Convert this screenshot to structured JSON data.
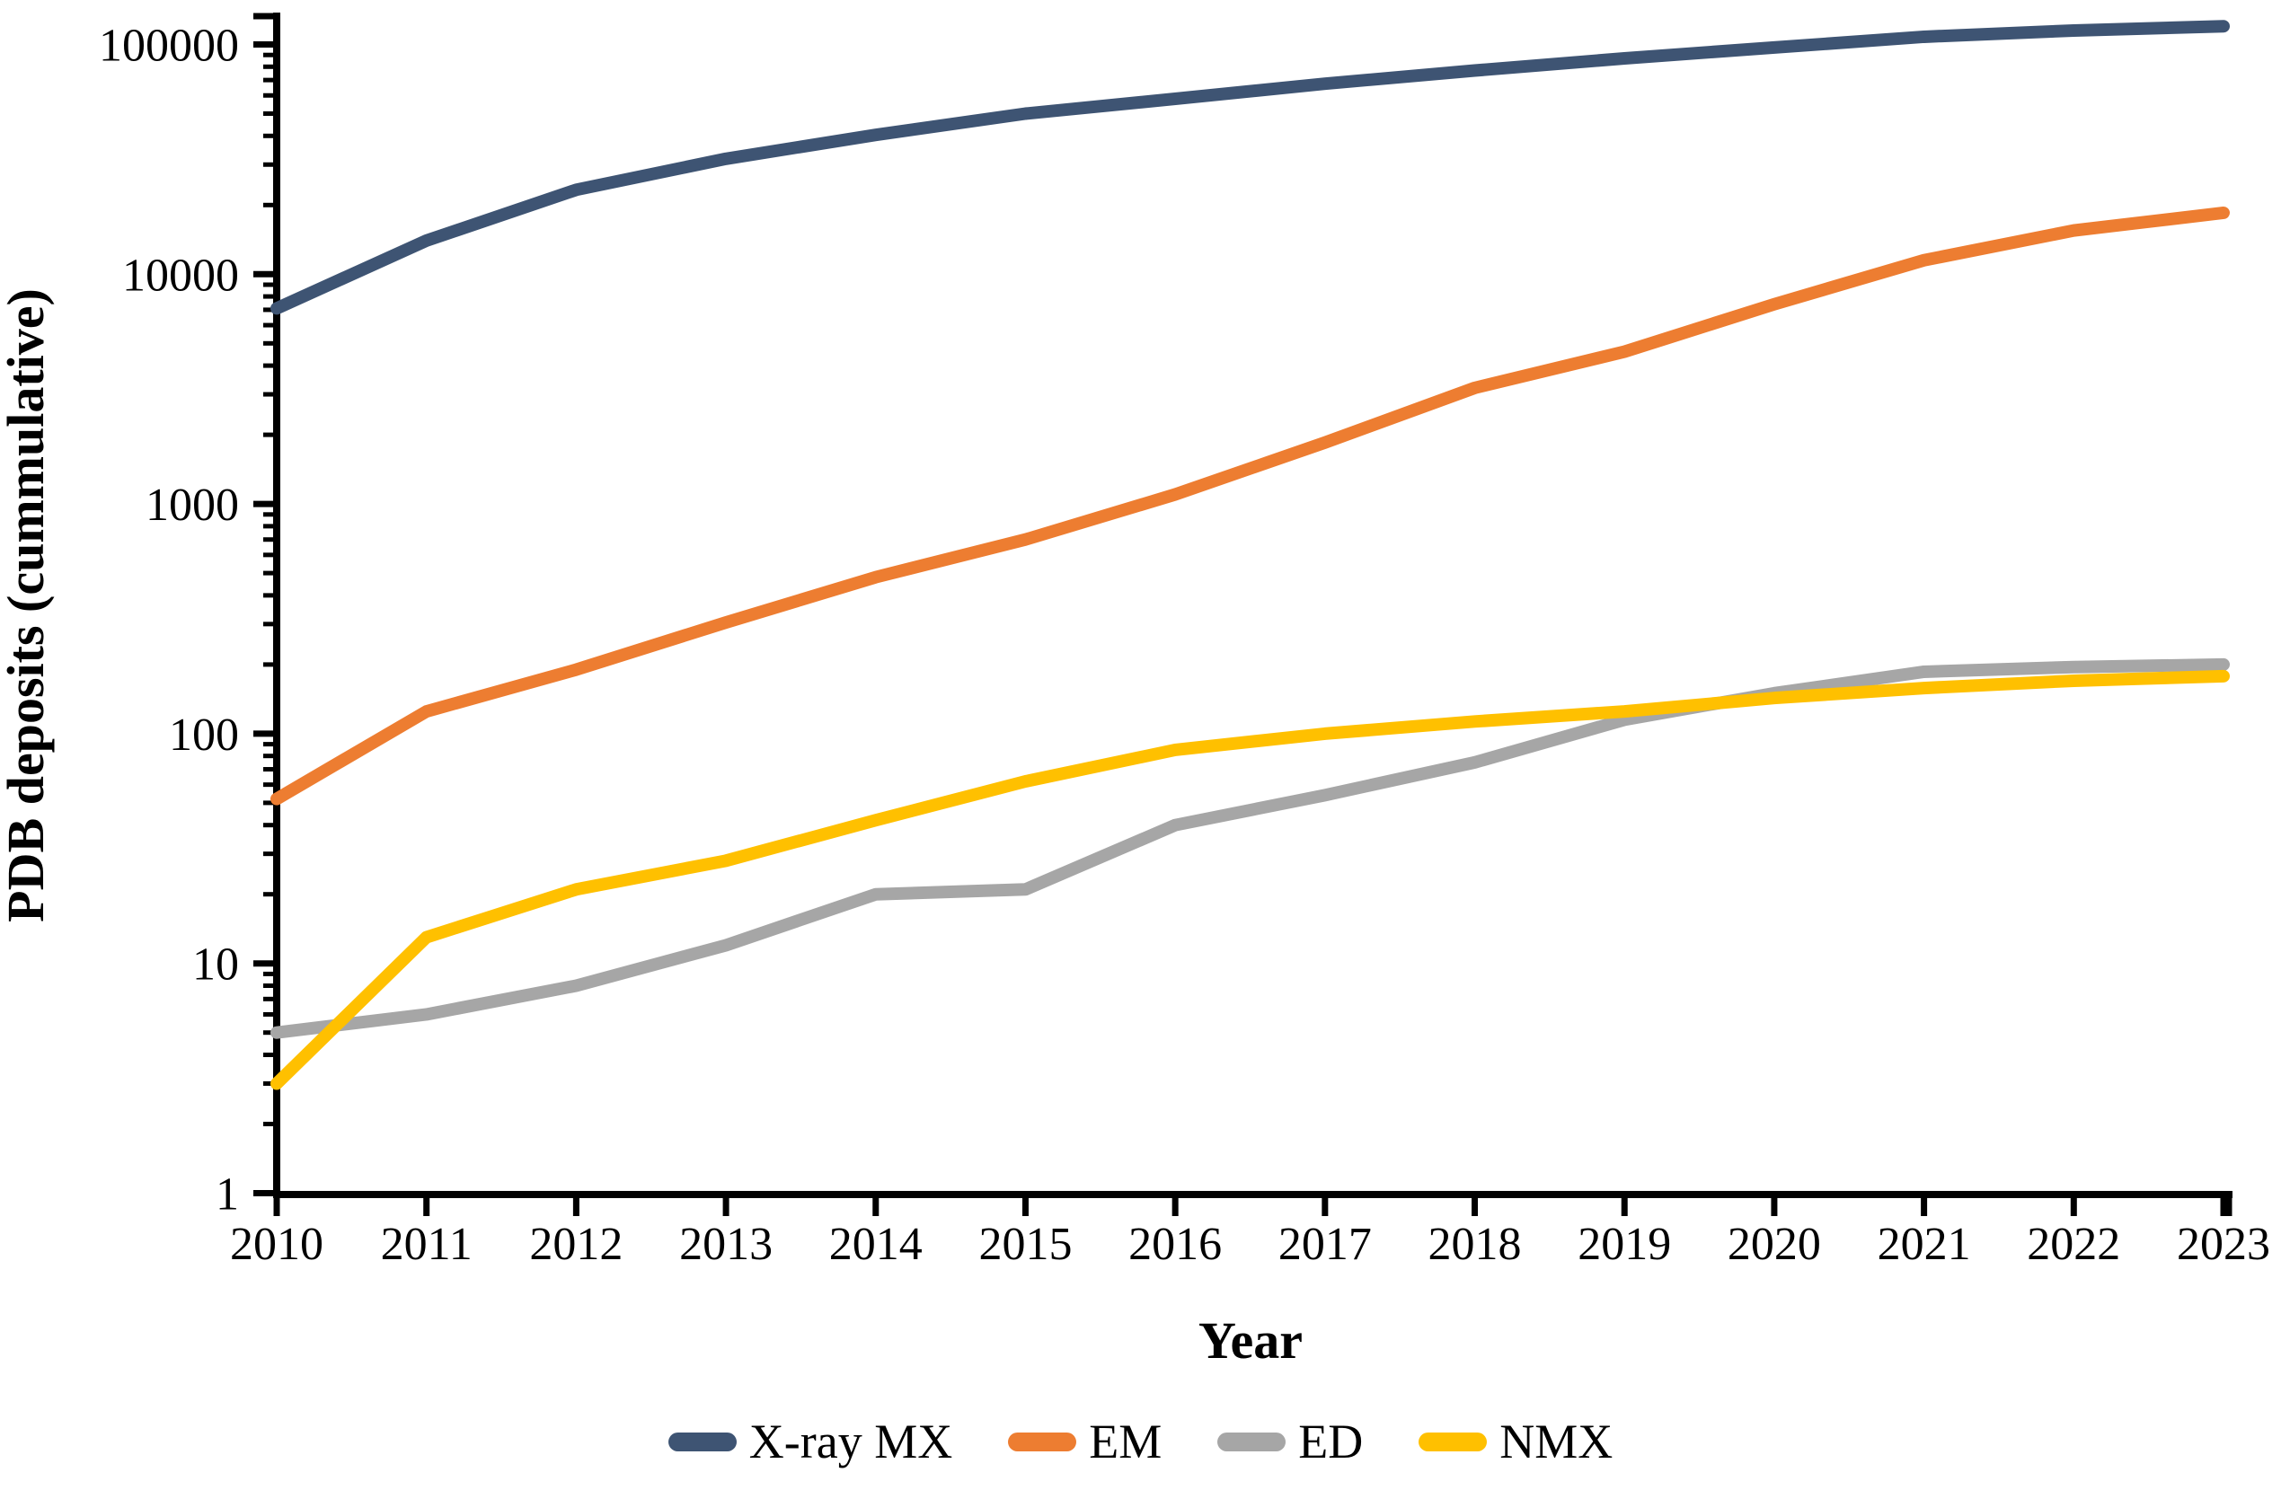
{
  "figure": {
    "background": "#ffffff",
    "y_tick_labels": [
      "100000",
      "10000",
      "1000",
      "100",
      "10",
      "1"
    ],
    "x_tick_labels": [
      "2010",
      "2011",
      "2012",
      "2013",
      "2014",
      "2015",
      "2016",
      "2017",
      "2018",
      "2019",
      "2020",
      "2021",
      "2022",
      "2023"
    ]
  },
  "chart_data": {
    "type": "line",
    "title": "",
    "xlabel": "Year",
    "ylabel": "PDB deposits (cummulative)",
    "y_scale": "log",
    "ylim": [
      1,
      133000
    ],
    "xlim": [
      2010,
      2023
    ],
    "grid": false,
    "legend_position": "bottom",
    "x": [
      2010,
      2011,
      2012,
      2013,
      2014,
      2015,
      2016,
      2017,
      2018,
      2019,
      2020,
      2021,
      2022,
      2023
    ],
    "series": [
      {
        "name": "X-ray MX",
        "color": "#3E5473",
        "values": [
          7100,
          14000,
          23300,
          31800,
          40400,
          50000,
          58000,
          67500,
          77000,
          87000,
          97000,
          108000,
          115000,
          120000
        ]
      },
      {
        "name": "EM",
        "color": "#ED7D31",
        "values": [
          52,
          125,
          190,
          305,
          480,
          700,
          1100,
          1850,
          3200,
          4600,
          7400,
          11500,
          15500,
          18500
        ]
      },
      {
        "name": "ED",
        "color": "#A6A6A6",
        "values": [
          5,
          6,
          8,
          12,
          20,
          21,
          40,
          54,
          75,
          115,
          150,
          186,
          195,
          200
        ]
      },
      {
        "name": "NMX",
        "color": "#FFC000",
        "values": [
          3,
          13,
          21,
          28,
          42,
          62,
          85,
          100,
          113,
          125,
          143,
          158,
          170,
          178
        ]
      }
    ]
  }
}
